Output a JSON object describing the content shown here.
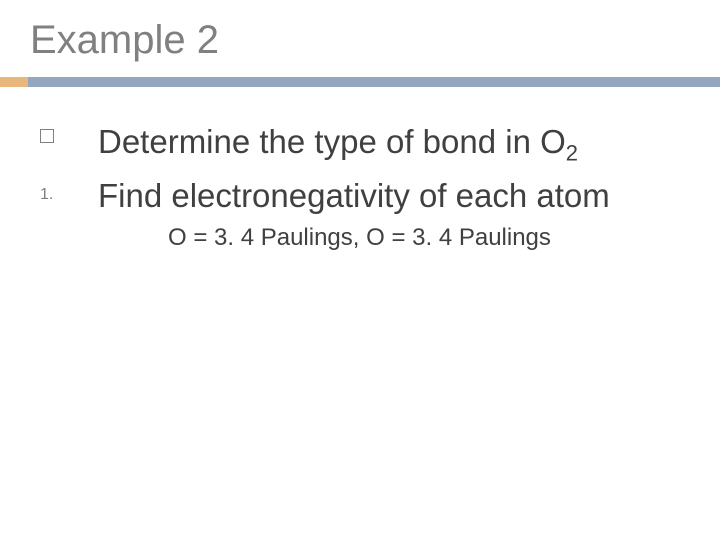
{
  "colors": {
    "title": "#808080",
    "body": "#404040",
    "accent": "#e8b77d",
    "bar": "#95a6c0",
    "bullet_border": "#808080",
    "background": "#ffffff"
  },
  "typography": {
    "title_fontsize": 40,
    "body_fontsize": 33,
    "sub_fontsize": 24,
    "subscript_fontsize": 22,
    "numlabel_fontsize": 16
  },
  "title": "Example 2",
  "items": [
    {
      "bullet_type": "square",
      "text_pre": "Determine the type of bond in ",
      "formula_base": "O",
      "formula_sub": "2"
    },
    {
      "bullet_type": "number",
      "number_label": "1.",
      "text": "Find electronegativity of each atom"
    }
  ],
  "sub_item": "O = 3. 4 Paulings, O = 3. 4 Paulings"
}
